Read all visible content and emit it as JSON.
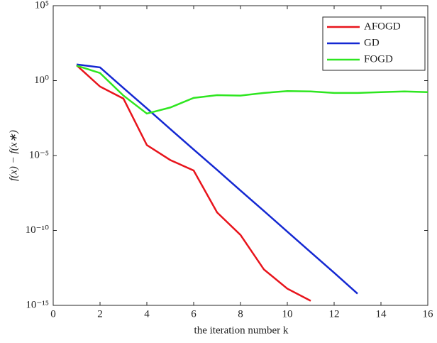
{
  "chart_data": {
    "type": "line",
    "xlabel": "the iteration number k",
    "ylabel": "f(x) − f(x∗)",
    "log_y": true,
    "legend": "upper right",
    "xlim": [
      0,
      16
    ],
    "xticks": [
      0,
      2,
      4,
      6,
      8,
      10,
      12,
      14,
      16
    ],
    "ylim": [
      1e-15,
      100000
    ],
    "yticks": [
      {
        "value": 1e-15,
        "label": "10⁻¹⁵"
      },
      {
        "value": 1e-10,
        "label": "10⁻¹⁰"
      },
      {
        "value": 1e-05,
        "label": "10⁻⁵"
      },
      {
        "value": 1,
        "label": "10⁰"
      },
      {
        "value": 100000,
        "label": "10⁵"
      }
    ],
    "series": [
      {
        "name": "AFOGD",
        "color": "#e8141c",
        "x": [
          1,
          2,
          3,
          4,
          5,
          6,
          7,
          8,
          9,
          10,
          11
        ],
        "values": [
          10.5,
          0.4,
          0.063,
          5e-05,
          5e-06,
          1e-06,
          1.6e-09,
          5e-11,
          2.5e-13,
          1.3e-14,
          2e-15
        ]
      },
      {
        "name": "GD",
        "color": "#1428d2",
        "x": [
          1,
          2,
          3,
          4,
          5,
          6,
          7,
          8,
          9,
          10,
          11,
          12,
          13
        ],
        "values": [
          12,
          7.6,
          0.32,
          0.014,
          0.00059,
          2.5e-05,
          1.1e-06,
          4.6e-08,
          2e-09,
          8.3e-11,
          3.5e-12,
          1.5e-13,
          6e-15
        ]
      },
      {
        "name": "FOGD",
        "color": "#2ee620",
        "x": [
          1,
          2,
          3,
          4,
          5,
          6,
          7,
          8,
          9,
          10,
          11,
          12,
          13,
          14,
          15,
          16
        ],
        "values": [
          10,
          3.2,
          0.1,
          0.0063,
          0.016,
          0.07,
          0.107,
          0.1,
          0.15,
          0.2,
          0.19,
          0.15,
          0.15,
          0.17,
          0.19,
          0.17
        ]
      }
    ]
  }
}
